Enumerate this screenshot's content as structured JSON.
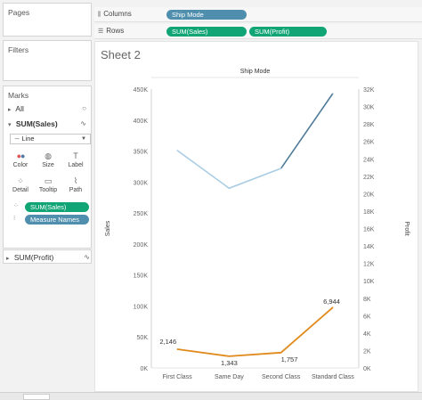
{
  "panes": {
    "pages_title": "Pages",
    "filters_title": "Filters",
    "marks_title": "Marks"
  },
  "marks": {
    "all_label": "All",
    "all_icon": "circle-icon",
    "sales_label": "SUM(Sales)",
    "mark_type": "Line",
    "buttons": [
      {
        "label": "Color",
        "icon": "color-dots-icon"
      },
      {
        "label": "Size",
        "icon": "size-icon"
      },
      {
        "label": "Label",
        "icon": "label-icon"
      },
      {
        "label": "Detail",
        "icon": "detail-icon"
      },
      {
        "label": "Tooltip",
        "icon": "tooltip-icon"
      },
      {
        "label": "Path",
        "icon": "path-icon"
      }
    ],
    "pill_sales": "SUM(Sales)",
    "pill_measure": "Measure Names",
    "profit_label": "SUM(Profit)"
  },
  "shelves": {
    "columns_label": "Columns",
    "columns_pill": "Ship Mode",
    "rows_label": "Rows",
    "rows_pills": [
      "SUM(Sales)",
      "SUM(Profit)"
    ]
  },
  "sheet": {
    "title": "Sheet 2"
  },
  "colors": {
    "sales": "#e08a1c",
    "profit": "#a9cde3",
    "profit_dark": "#4f7b99",
    "green_pill": "#11a575",
    "blue_pill": "#4f8fad"
  },
  "chart_data": {
    "type": "line",
    "title": "Ship Mode",
    "categories": [
      "First Class",
      "Same Day",
      "Second Class",
      "Standard Class"
    ],
    "series": [
      {
        "name": "SUM(Sales)",
        "axis": "left",
        "values": [
          351000,
          290000,
          322000,
          443000
        ]
      },
      {
        "name": "SUM(Profit)",
        "axis": "right",
        "values": [
          2146,
          1343,
          1757,
          6944
        ],
        "labels": [
          "2,146",
          "1,343",
          "1,757",
          "6,944"
        ]
      }
    ],
    "y_left": {
      "label": "Sales",
      "min": 0,
      "max": 450000,
      "ticks": [
        "0K",
        "50K",
        "100K",
        "150K",
        "200K",
        "250K",
        "300K",
        "350K",
        "400K",
        "450K"
      ]
    },
    "y_right": {
      "label": "Profit",
      "min": 0,
      "max": 32000,
      "ticks": [
        "0K",
        "2K",
        "4K",
        "6K",
        "8K",
        "10K",
        "12K",
        "14K",
        "16K",
        "18K",
        "20K",
        "22K",
        "24K",
        "26K",
        "28K",
        "30K",
        "32K"
      ]
    },
    "grid": false
  }
}
